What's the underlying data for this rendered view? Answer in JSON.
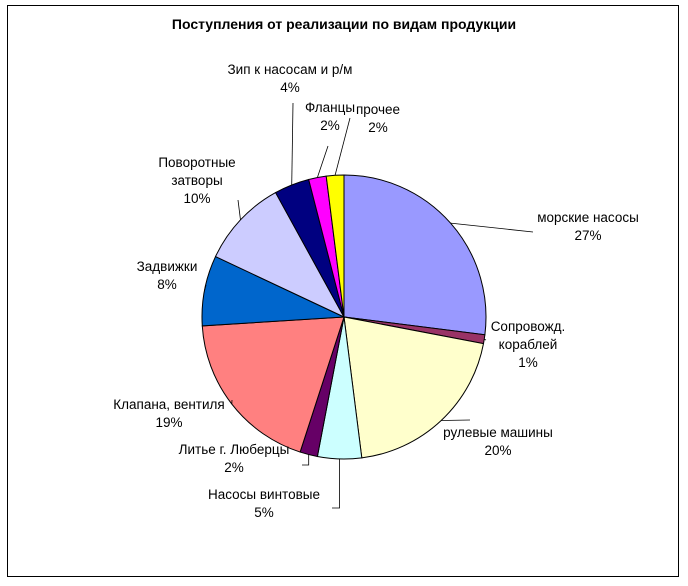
{
  "chart_data": {
    "type": "pie",
    "title": "Поступления от реализации по видам продукции",
    "slices": [
      {
        "lines": [
          "морские насосы"
        ],
        "pct": "27%",
        "value": 27,
        "color": "#9999FF"
      },
      {
        "lines": [
          "Сопровожд.",
          "кораблей"
        ],
        "pct": "1%",
        "value": 1,
        "color": "#993366"
      },
      {
        "lines": [
          "рулевые машины"
        ],
        "pct": "20%",
        "value": 20,
        "color": "#FFFFCC"
      },
      {
        "lines": [
          "Насосы винтовые"
        ],
        "pct": "5%",
        "value": 5,
        "color": "#CCFFFF"
      },
      {
        "lines": [
          "Литье г. Люберцы"
        ],
        "pct": "2%",
        "value": 2,
        "color": "#660066"
      },
      {
        "lines": [
          "Клапана, вентиля"
        ],
        "pct": "19%",
        "value": 19,
        "color": "#FF8080"
      },
      {
        "lines": [
          "Задвижки"
        ],
        "pct": "8%",
        "value": 8,
        "color": "#0066CC"
      },
      {
        "lines": [
          "Поворотные",
          "затворы"
        ],
        "pct": "10%",
        "value": 10,
        "color": "#CCCCFF"
      },
      {
        "lines": [
          "Зип к насосам и р/м"
        ],
        "pct": "4%",
        "value": 4,
        "color": "#000080"
      },
      {
        "lines": [
          "Фланцы"
        ],
        "pct": "2%",
        "value": 2,
        "color": "#FF00FF"
      },
      {
        "lines": [
          "прочее"
        ],
        "pct": "2%",
        "value": 2,
        "color": "#FFFF00"
      }
    ],
    "legend": "none"
  }
}
